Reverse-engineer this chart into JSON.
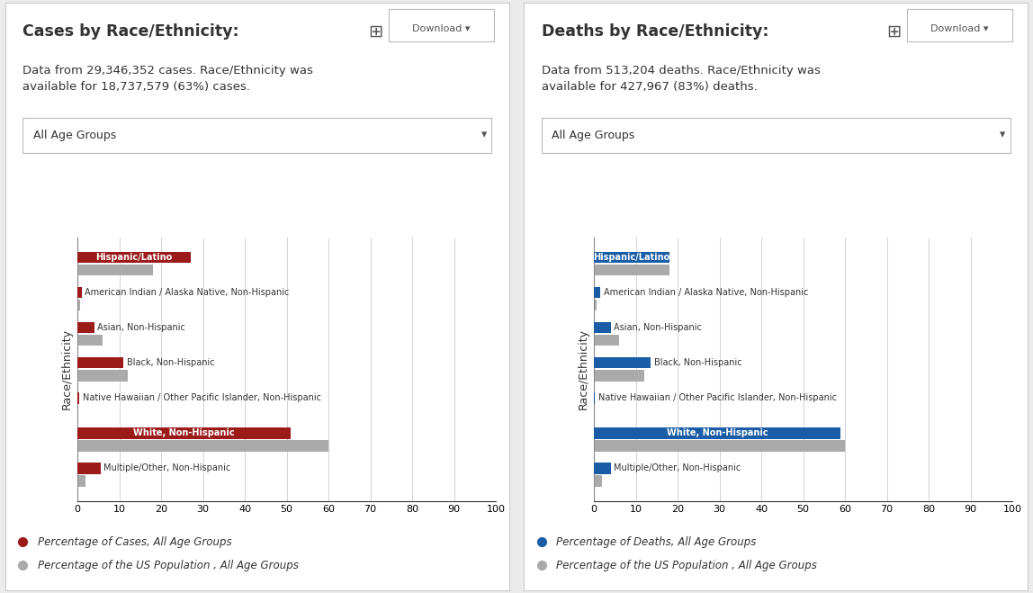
{
  "left_title": "Cases by Race/Ethnicity:",
  "left_subtitle": "Data from 29,346,352 cases. Race/Ethnicity was\navailable for 18,737,579 (63%) cases.",
  "left_dropdown": "All Age Groups",
  "right_title": "Deaths by Race/Ethnicity:",
  "right_subtitle": "Data from 513,204 deaths. Race/Ethnicity was\navailable for 427,967 (83%) deaths.",
  "right_dropdown": "All Age Groups",
  "categories": [
    "Hispanic/Latino",
    "American Indian / Alaska Native, Non-Hispanic",
    "Asian, Non-Hispanic",
    "Black, Non-Hispanic",
    "Native Hawaiian / Other Pacific Islander, Non-Hispanic",
    "White, Non-Hispanic",
    "Multiple/Other, Non-Hispanic"
  ],
  "cases_values": [
    27,
    1.0,
    4.0,
    11.0,
    0.4,
    51,
    5.5
  ],
  "cases_us_pop": [
    18,
    0.7,
    6.0,
    12.0,
    0.3,
    60,
    2.0
  ],
  "deaths_values": [
    18,
    1.5,
    4.0,
    13.5,
    0.3,
    59,
    4.0
  ],
  "deaths_us_pop": [
    18,
    0.7,
    6.0,
    12.0,
    0.3,
    60,
    2.0
  ],
  "cases_bar_color": "#9B1B1B",
  "deaths_bar_color": "#1A5DA6",
  "us_pop_color": "#AAAAAA",
  "bg_outer": "#EBEBEB",
  "bg_panel": "#FFFFFF",
  "border_color": "#CCCCCC",
  "text_color": "#333333",
  "axis_label": "Race/Ethnicity",
  "xticks": [
    0,
    10,
    20,
    30,
    40,
    50,
    60,
    70,
    80,
    90,
    100
  ],
  "cases_legend1": "Percentage of Cases, All Age Groups",
  "cases_legend2": "Percentage of the US Population , All Age Groups",
  "deaths_legend1": "Percentage of Deaths, All Age Groups",
  "deaths_legend2": "Percentage of the US Population , All Age Groups",
  "bar_height": 0.32,
  "bar_sep": 0.04
}
